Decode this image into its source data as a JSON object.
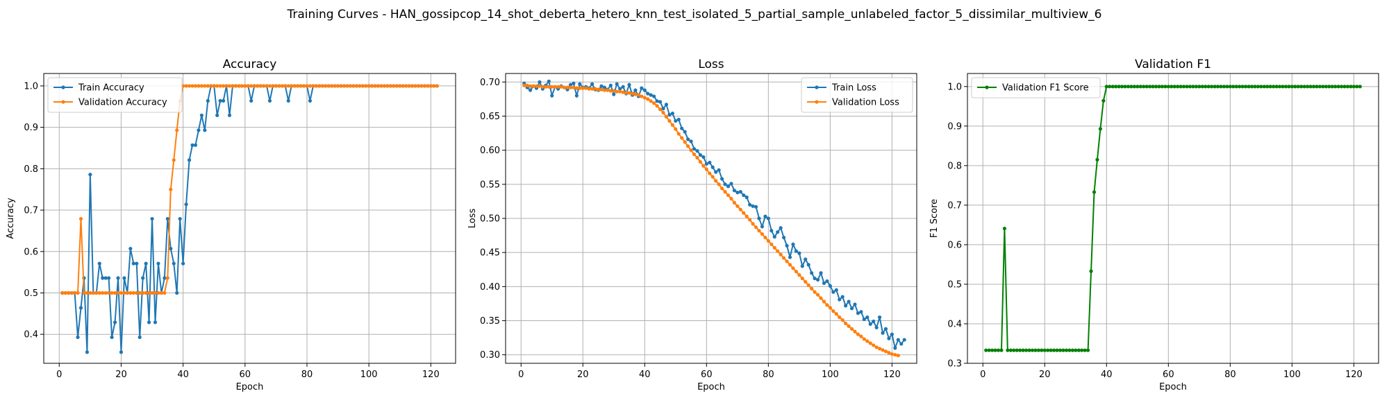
{
  "figure": {
    "suptitle": "Training Curves - HAN_gossipcop_14_shot_deberta_hetero_knn_test_isolated_5_partial_sample_unlabeled_factor_5_dissimilar_multiview_6"
  },
  "chart_data": [
    {
      "type": "line",
      "title": "Accuracy",
      "xlabel": "Epoch",
      "ylabel": "Accuracy",
      "xlim": [
        -5,
        128
      ],
      "ylim": [
        0.33,
        1.03
      ],
      "xticks": [
        0,
        20,
        40,
        60,
        80,
        100,
        120
      ],
      "yticks": [
        0.4,
        0.5,
        0.6,
        0.7,
        0.8,
        0.9,
        1.0
      ],
      "ytick_labels": [
        "0.4",
        "0.5",
        "0.6",
        "0.7",
        "0.8",
        "0.9",
        "1.0"
      ],
      "grid": true,
      "legend_position": "upper-left",
      "x_start": 1,
      "series": [
        {
          "name": "Train Accuracy",
          "color": "#1f77b4",
          "values": [
            0.5,
            0.5,
            0.5,
            0.5,
            0.5,
            0.393,
            0.464,
            0.536,
            0.357,
            0.786,
            0.5,
            0.5,
            0.571,
            0.536,
            0.536,
            0.536,
            0.393,
            0.429,
            0.536,
            0.357,
            0.536,
            0.5,
            0.607,
            0.571,
            0.571,
            0.393,
            0.536,
            0.571,
            0.429,
            0.679,
            0.429,
            0.571,
            0.5,
            0.536,
            0.679,
            0.607,
            0.571,
            0.5,
            0.679,
            0.571,
            0.714,
            0.821,
            0.857,
            0.857,
            0.893,
            0.929,
            0.893,
            0.964,
            1.0,
            1.0,
            0.929,
            0.964,
            0.964,
            1.0,
            0.929,
            1.0,
            1.0,
            1.0,
            1.0,
            1.0,
            1.0,
            0.964,
            1.0,
            1.0,
            1.0,
            1.0,
            1.0,
            0.964,
            1.0,
            1.0,
            1.0,
            1.0,
            1.0,
            0.964,
            1.0,
            1.0,
            1.0,
            1.0,
            1.0,
            1.0,
            0.964,
            1.0,
            1.0,
            1.0,
            1.0,
            1.0,
            1.0,
            1.0,
            1.0,
            1.0,
            1.0,
            1.0,
            1.0,
            1.0,
            1.0,
            1.0,
            1.0,
            1.0,
            1.0,
            1.0,
            1.0,
            1.0,
            1.0,
            1.0,
            1.0,
            1.0,
            1.0,
            1.0,
            1.0,
            1.0,
            1.0,
            1.0,
            1.0,
            1.0,
            1.0,
            1.0,
            1.0,
            1.0,
            1.0,
            1.0,
            1.0,
            1.0
          ]
        },
        {
          "name": "Validation Accuracy",
          "color": "#ff7f0e",
          "values": [
            0.5,
            0.5,
            0.5,
            0.5,
            0.5,
            0.5,
            0.679,
            0.5,
            0.5,
            0.5,
            0.5,
            0.5,
            0.5,
            0.5,
            0.5,
            0.5,
            0.5,
            0.5,
            0.5,
            0.5,
            0.5,
            0.5,
            0.5,
            0.5,
            0.5,
            0.5,
            0.5,
            0.5,
            0.5,
            0.5,
            0.5,
            0.5,
            0.5,
            0.5,
            0.536,
            0.75,
            0.821,
            0.893,
            0.964,
            1.0,
            1.0,
            1.0,
            1.0,
            1.0,
            1.0,
            1.0,
            1.0,
            1.0,
            1.0,
            1.0,
            1.0,
            1.0,
            1.0,
            1.0,
            1.0,
            1.0,
            1.0,
            1.0,
            1.0,
            1.0,
            1.0,
            1.0,
            1.0,
            1.0,
            1.0,
            1.0,
            1.0,
            1.0,
            1.0,
            1.0,
            1.0,
            1.0,
            1.0,
            1.0,
            1.0,
            1.0,
            1.0,
            1.0,
            1.0,
            1.0,
            1.0,
            1.0,
            1.0,
            1.0,
            1.0,
            1.0,
            1.0,
            1.0,
            1.0,
            1.0,
            1.0,
            1.0,
            1.0,
            1.0,
            1.0,
            1.0,
            1.0,
            1.0,
            1.0,
            1.0,
            1.0,
            1.0,
            1.0,
            1.0,
            1.0,
            1.0,
            1.0,
            1.0,
            1.0,
            1.0,
            1.0,
            1.0,
            1.0,
            1.0,
            1.0,
            1.0,
            1.0,
            1.0,
            1.0,
            1.0,
            1.0,
            1.0
          ]
        }
      ]
    },
    {
      "type": "line",
      "title": "Loss",
      "xlabel": "Epoch",
      "ylabel": "Loss",
      "xlim": [
        -5,
        128
      ],
      "ylim": [
        0.2875,
        0.7125
      ],
      "xticks": [
        0,
        20,
        40,
        60,
        80,
        100,
        120
      ],
      "yticks": [
        0.3,
        0.35,
        0.4,
        0.45,
        0.5,
        0.55,
        0.6,
        0.65,
        0.7
      ],
      "ytick_labels": [
        "0.30",
        "0.35",
        "0.40",
        "0.45",
        "0.50",
        "0.55",
        "0.60",
        "0.65",
        "0.70"
      ],
      "grid": true,
      "legend_position": "upper-right",
      "x_start": 1,
      "series": [
        {
          "name": "Train Loss",
          "color": "#1f77b4",
          "values": [
            0.698,
            0.692,
            0.688,
            0.694,
            0.691,
            0.7,
            0.69,
            0.695,
            0.701,
            0.68,
            0.693,
            0.69,
            0.694,
            0.692,
            0.689,
            0.696,
            0.698,
            0.68,
            0.697,
            0.692,
            0.693,
            0.691,
            0.697,
            0.689,
            0.688,
            0.694,
            0.692,
            0.689,
            0.695,
            0.682,
            0.697,
            0.69,
            0.693,
            0.683,
            0.696,
            0.681,
            0.688,
            0.679,
            0.691,
            0.688,
            0.683,
            0.681,
            0.679,
            0.672,
            0.671,
            0.661,
            0.667,
            0.652,
            0.654,
            0.643,
            0.645,
            0.632,
            0.627,
            0.616,
            0.613,
            0.602,
            0.599,
            0.593,
            0.59,
            0.58,
            0.582,
            0.575,
            0.568,
            0.571,
            0.558,
            0.55,
            0.547,
            0.551,
            0.541,
            0.538,
            0.539,
            0.534,
            0.531,
            0.52,
            0.518,
            0.517,
            0.5,
            0.488,
            0.503,
            0.5,
            0.482,
            0.473,
            0.48,
            0.486,
            0.472,
            0.46,
            0.443,
            0.462,
            0.452,
            0.449,
            0.43,
            0.44,
            0.432,
            0.42,
            0.412,
            0.41,
            0.42,
            0.405,
            0.408,
            0.401,
            0.392,
            0.395,
            0.381,
            0.385,
            0.372,
            0.378,
            0.368,
            0.374,
            0.361,
            0.363,
            0.352,
            0.355,
            0.345,
            0.349,
            0.34,
            0.355,
            0.332,
            0.338,
            0.324,
            0.33,
            0.31,
            0.322,
            0.316,
            0.322
          ]
        },
        {
          "name": "Validation Loss",
          "color": "#ff7f0e",
          "values": [
            0.695,
            0.695,
            0.694,
            0.694,
            0.694,
            0.694,
            0.693,
            0.693,
            0.693,
            0.693,
            0.693,
            0.693,
            0.693,
            0.692,
            0.692,
            0.692,
            0.692,
            0.691,
            0.691,
            0.691,
            0.691,
            0.69,
            0.69,
            0.69,
            0.689,
            0.689,
            0.688,
            0.688,
            0.687,
            0.687,
            0.686,
            0.686,
            0.685,
            0.684,
            0.684,
            0.683,
            0.682,
            0.681,
            0.679,
            0.677,
            0.675,
            0.672,
            0.669,
            0.665,
            0.66,
            0.655,
            0.649,
            0.643,
            0.637,
            0.631,
            0.624,
            0.618,
            0.612,
            0.606,
            0.6,
            0.594,
            0.589,
            0.583,
            0.577,
            0.572,
            0.566,
            0.561,
            0.555,
            0.55,
            0.544,
            0.539,
            0.534,
            0.529,
            0.523,
            0.518,
            0.513,
            0.508,
            0.503,
            0.498,
            0.492,
            0.487,
            0.482,
            0.477,
            0.472,
            0.467,
            0.462,
            0.457,
            0.452,
            0.447,
            0.442,
            0.437,
            0.432,
            0.427,
            0.422,
            0.417,
            0.412,
            0.407,
            0.402,
            0.397,
            0.392,
            0.388,
            0.383,
            0.378,
            0.373,
            0.369,
            0.364,
            0.36,
            0.355,
            0.351,
            0.346,
            0.342,
            0.338,
            0.334,
            0.33,
            0.327,
            0.323,
            0.32,
            0.317,
            0.314,
            0.311,
            0.309,
            0.307,
            0.305,
            0.303,
            0.301,
            0.3,
            0.299
          ]
        }
      ]
    },
    {
      "type": "line",
      "title": "Validation F1",
      "xlabel": "Epoch",
      "ylabel": "F1 Score",
      "xlim": [
        -5,
        128
      ],
      "ylim": [
        0.3,
        1.033
      ],
      "xticks": [
        0,
        20,
        40,
        60,
        80,
        100,
        120
      ],
      "yticks": [
        0.3,
        0.4,
        0.5,
        0.6,
        0.7,
        0.8,
        0.9,
        1.0
      ],
      "ytick_labels": [
        "0.3",
        "0.4",
        "0.5",
        "0.6",
        "0.7",
        "0.8",
        "0.9",
        "1.0"
      ],
      "grid": true,
      "legend_position": "upper-left",
      "x_start": 1,
      "series": [
        {
          "name": "Validation F1 Score",
          "color": "#008000",
          "values": [
            0.333,
            0.333,
            0.333,
            0.333,
            0.333,
            0.333,
            0.641,
            0.333,
            0.333,
            0.333,
            0.333,
            0.333,
            0.333,
            0.333,
            0.333,
            0.333,
            0.333,
            0.333,
            0.333,
            0.333,
            0.333,
            0.333,
            0.333,
            0.333,
            0.333,
            0.333,
            0.333,
            0.333,
            0.333,
            0.333,
            0.333,
            0.333,
            0.333,
            0.333,
            0.533,
            0.733,
            0.815,
            0.893,
            0.964,
            1.0,
            1.0,
            1.0,
            1.0,
            1.0,
            1.0,
            1.0,
            1.0,
            1.0,
            1.0,
            1.0,
            1.0,
            1.0,
            1.0,
            1.0,
            1.0,
            1.0,
            1.0,
            1.0,
            1.0,
            1.0,
            1.0,
            1.0,
            1.0,
            1.0,
            1.0,
            1.0,
            1.0,
            1.0,
            1.0,
            1.0,
            1.0,
            1.0,
            1.0,
            1.0,
            1.0,
            1.0,
            1.0,
            1.0,
            1.0,
            1.0,
            1.0,
            1.0,
            1.0,
            1.0,
            1.0,
            1.0,
            1.0,
            1.0,
            1.0,
            1.0,
            1.0,
            1.0,
            1.0,
            1.0,
            1.0,
            1.0,
            1.0,
            1.0,
            1.0,
            1.0,
            1.0,
            1.0,
            1.0,
            1.0,
            1.0,
            1.0,
            1.0,
            1.0,
            1.0,
            1.0,
            1.0,
            1.0,
            1.0,
            1.0,
            1.0,
            1.0,
            1.0,
            1.0,
            1.0,
            1.0,
            1.0,
            1.0
          ]
        }
      ]
    }
  ]
}
